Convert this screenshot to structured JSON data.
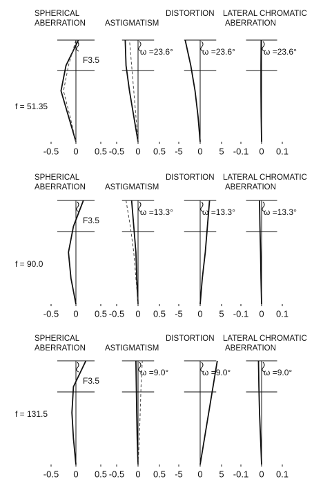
{
  "row_labels": [
    "f = 51.35",
    "f = 90.0",
    "f = 131.5"
  ],
  "chart_data": [
    {
      "type": "line",
      "title_lines": [
        "SPHERICAL",
        "ABERRATION"
      ],
      "annotation": "F3.5",
      "xlim": [
        -0.5,
        0.5
      ],
      "xticks": [
        -0.5,
        0,
        0.5
      ],
      "series": [
        {
          "color": "#111",
          "dash": false,
          "values": [
            0,
            -0.15,
            -0.3,
            -0.2,
            0.05
          ],
          "heights": [
            0,
            0.25,
            0.5,
            0.75,
            1
          ]
        },
        {
          "color": "#444",
          "dash": true,
          "values": [
            0,
            -0.12,
            -0.25,
            -0.15,
            0
          ],
          "heights": [
            0,
            0.25,
            0.5,
            0.75,
            1
          ]
        }
      ]
    },
    {
      "type": "line",
      "title_lines": [
        "ASTIGMATISM"
      ],
      "annotation": "ω =23.6°",
      "xlim": [
        -0.5,
        0.5
      ],
      "xticks": [
        -0.5,
        0,
        0.5
      ],
      "series": [
        {
          "color": "#111",
          "dash": false,
          "values": [
            0,
            -0.1,
            -0.2,
            -0.28,
            -0.3
          ],
          "heights": [
            0,
            0.25,
            0.5,
            0.75,
            1
          ]
        },
        {
          "color": "#444",
          "dash": true,
          "values": [
            0,
            -0.05,
            -0.1,
            -0.15,
            -0.2
          ],
          "heights": [
            0,
            0.25,
            0.5,
            0.75,
            1
          ]
        }
      ]
    },
    {
      "type": "line",
      "title_lines": [
        "DISTORTION"
      ],
      "annotation": "ω =23.6°",
      "xlim": [
        -5,
        5
      ],
      "xticks": [
        -5,
        0,
        5
      ],
      "series": [
        {
          "color": "#111",
          "dash": false,
          "values": [
            0,
            -0.5,
            -1.2,
            -2.2,
            -3.5
          ],
          "heights": [
            0,
            0.25,
            0.5,
            0.75,
            1
          ]
        }
      ]
    },
    {
      "type": "line",
      "title_lines": [
        "LATERAL CHROMATIC",
        "ABERRATION"
      ],
      "annotation": "ω =23.6°",
      "xlim": [
        -0.1,
        0.1
      ],
      "xticks": [
        -0.1,
        0,
        0.1
      ],
      "series": [
        {
          "color": "#111",
          "dash": false,
          "values": [
            0,
            -0.002,
            -0.003,
            -0.003,
            -0.002
          ],
          "heights": [
            0,
            0.25,
            0.5,
            0.75,
            1
          ]
        }
      ]
    },
    {
      "type": "line",
      "title_lines": [
        "SPHERICAL",
        "ABERRATION"
      ],
      "annotation": "F3.5",
      "xlim": [
        -0.5,
        0.5
      ],
      "xticks": [
        -0.5,
        0,
        0.5
      ],
      "series": [
        {
          "color": "#111",
          "dash": false,
          "values": [
            0,
            -0.1,
            -0.15,
            -0.05,
            0.15
          ],
          "heights": [
            0,
            0.25,
            0.5,
            0.75,
            1
          ]
        }
      ]
    },
    {
      "type": "line",
      "title_lines": [
        "ASTIGMATISM"
      ],
      "annotation": "ω =13.3°",
      "xlim": [
        -0.5,
        0.5
      ],
      "xticks": [
        -0.5,
        0,
        0.5
      ],
      "series": [
        {
          "color": "#111",
          "dash": false,
          "values": [
            0,
            -0.03,
            -0.05,
            -0.1,
            -0.15
          ],
          "heights": [
            0,
            0.25,
            0.5,
            0.75,
            1
          ]
        },
        {
          "color": "#444",
          "dash": true,
          "values": [
            0,
            -0.05,
            -0.1,
            -0.18,
            -0.28
          ],
          "heights": [
            0,
            0.25,
            0.5,
            0.75,
            1
          ]
        }
      ]
    },
    {
      "type": "line",
      "title_lines": [
        "DISTORTION"
      ],
      "annotation": "ω =13.3°",
      "xlim": [
        -5,
        5
      ],
      "xticks": [
        -5,
        0,
        5
      ],
      "series": [
        {
          "color": "#111",
          "dash": false,
          "values": [
            0,
            0.5,
            1.2,
            1.7,
            2.2
          ],
          "heights": [
            0,
            0.25,
            0.5,
            0.75,
            1
          ]
        }
      ]
    },
    {
      "type": "line",
      "title_lines": [
        "LATERAL CHROMATIC",
        "ABERRATION"
      ],
      "annotation": "ω =13.3°",
      "xlim": [
        -0.1,
        0.1
      ],
      "xticks": [
        -0.1,
        0,
        0.1
      ],
      "series": [
        {
          "color": "#111",
          "dash": false,
          "values": [
            0,
            -0.003,
            -0.005,
            -0.008,
            -0.01
          ],
          "heights": [
            0,
            0.25,
            0.5,
            0.75,
            1
          ]
        }
      ]
    },
    {
      "type": "line",
      "title_lines": [
        "SPHERICAL",
        "ABERRATION"
      ],
      "annotation": "F3.5",
      "xlim": [
        -0.5,
        0.5
      ],
      "xticks": [
        -0.5,
        0,
        0.5
      ],
      "series": [
        {
          "color": "#111",
          "dash": false,
          "values": [
            0,
            -0.05,
            -0.08,
            -0.05,
            0.2
          ],
          "heights": [
            0,
            0.25,
            0.5,
            0.75,
            1
          ]
        }
      ]
    },
    {
      "type": "line",
      "title_lines": [
        "ASTIGMATISM"
      ],
      "annotation": "ω =9.0°",
      "xlim": [
        -0.5,
        0.5
      ],
      "xticks": [
        -0.5,
        0,
        0.5
      ],
      "series": [
        {
          "color": "#111",
          "dash": false,
          "values": [
            0,
            -0.02,
            -0.03,
            -0.04,
            -0.05
          ],
          "heights": [
            0,
            0.25,
            0.5,
            0.75,
            1
          ]
        },
        {
          "color": "#444",
          "dash": true,
          "values": [
            0,
            0.03,
            0.05,
            0.07,
            0.1
          ],
          "heights": [
            0,
            0.25,
            0.5,
            0.75,
            1
          ]
        }
      ]
    },
    {
      "type": "line",
      "title_lines": [
        "DISTORTION"
      ],
      "annotation": "ω =9.0°",
      "xlim": [
        -5,
        5
      ],
      "xticks": [
        -5,
        0,
        5
      ],
      "series": [
        {
          "color": "#111",
          "dash": false,
          "values": [
            0,
            1,
            2,
            3,
            4
          ],
          "heights": [
            0,
            0.25,
            0.5,
            0.75,
            1
          ]
        }
      ]
    },
    {
      "type": "line",
      "title_lines": [
        "LATERAL CHROMATIC",
        "ABERRATION"
      ],
      "annotation": "ω =9.0°",
      "xlim": [
        -0.1,
        0.1
      ],
      "xticks": [
        -0.1,
        0,
        0.1
      ],
      "series": [
        {
          "color": "#111",
          "dash": false,
          "values": [
            0,
            -0.005,
            -0.01,
            -0.013,
            -0.015
          ],
          "heights": [
            0,
            0.25,
            0.5,
            0.75,
            1
          ]
        }
      ]
    }
  ]
}
